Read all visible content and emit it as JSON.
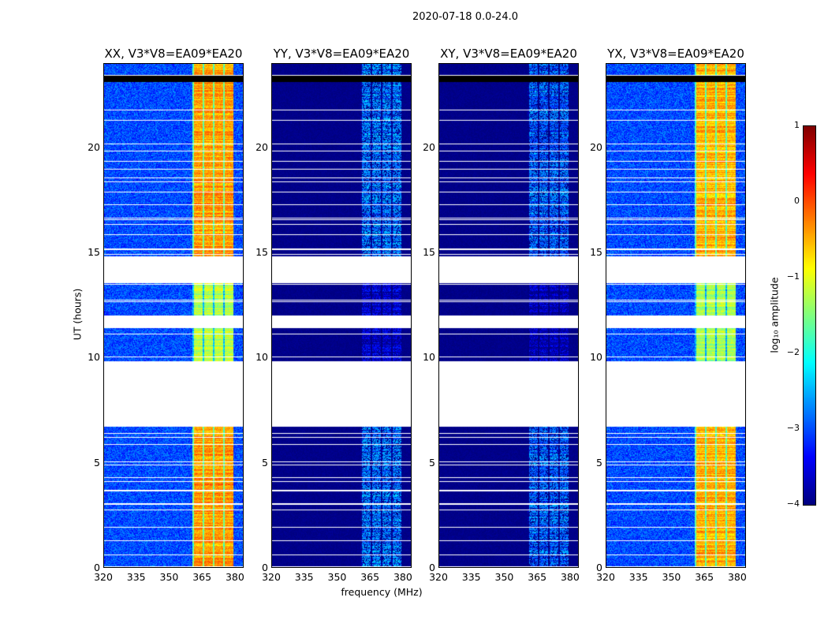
{
  "chart_data": {
    "type": "heatmap",
    "title": "2020-07-18 0.0-24.0",
    "xlabel": "frequency (MHz)",
    "ylabel": "UT (hours)",
    "xlim": [
      320,
      384
    ],
    "ylim": [
      0,
      24
    ],
    "xticks": [
      320,
      335,
      350,
      365,
      380
    ],
    "yticks": [
      0,
      5,
      10,
      15,
      20
    ],
    "panels": [
      {
        "title": "XX, V3*V8=EA09*EA20",
        "base": -3.0,
        "band_level": -0.4
      },
      {
        "title": "YY, V3*V8=EA09*EA20",
        "base": -3.95,
        "band_level": -2.7
      },
      {
        "title": "XY, V3*V8=EA09*EA20",
        "base": -3.95,
        "band_level": -2.8
      },
      {
        "title": "YX, V3*V8=EA09*EA20",
        "base": -3.0,
        "band_level": -0.5
      }
    ],
    "signal_band_mhz": [
      360.5,
      379.5
    ],
    "no_data_hours": [
      [
        6.7,
        9.85
      ],
      [
        11.4,
        12.0
      ],
      [
        13.55,
        14.8
      ]
    ],
    "black_band_hours": [
      23.15,
      23.45
    ],
    "colorbar": {
      "label": "log₁₀ amplitude",
      "range": [
        -4,
        1
      ],
      "ticks": [
        "−4",
        "−3",
        "−2",
        "−1",
        "0",
        "1"
      ],
      "colormap": "jet"
    }
  }
}
